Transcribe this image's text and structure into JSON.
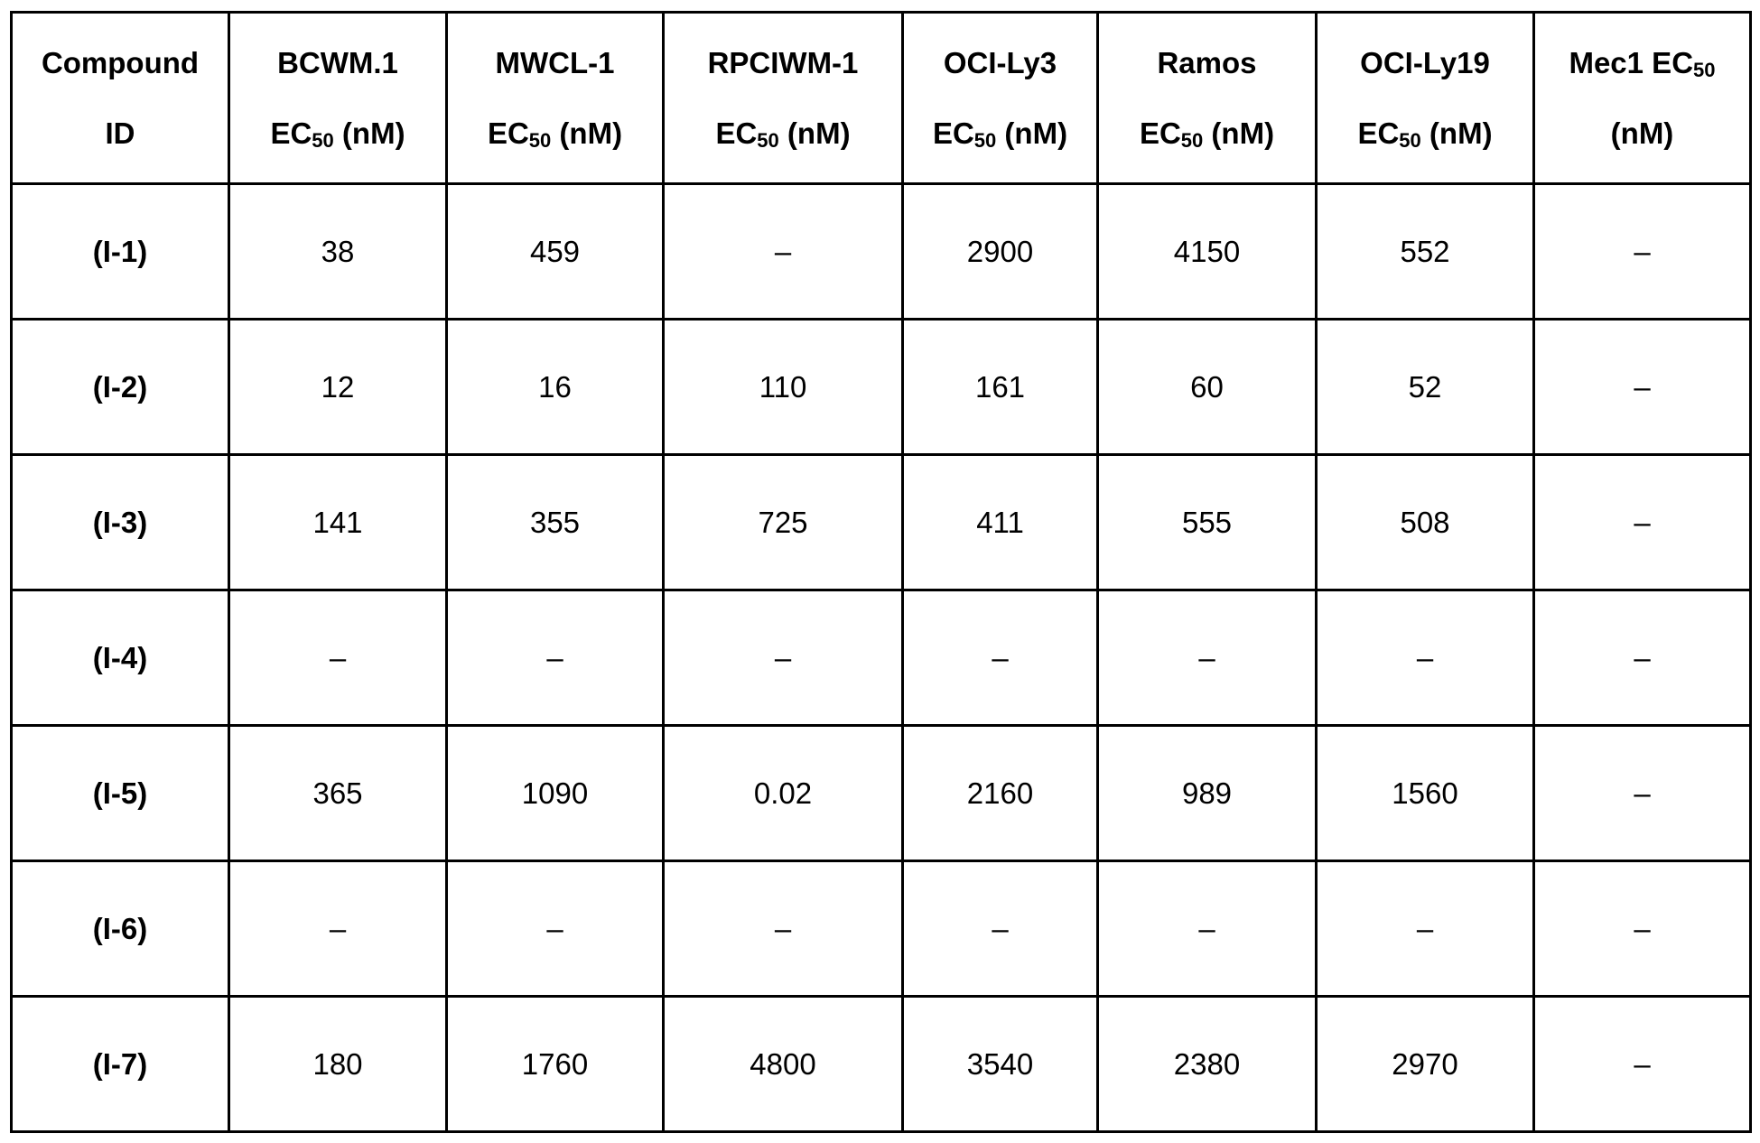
{
  "table": {
    "headers": [
      {
        "line1": "Compound",
        "line2": "ID",
        "sub": "",
        "line2_after": ""
      },
      {
        "line1": "BCWM.1",
        "line2": "EC",
        "sub": "50",
        "line2_after": " (nM)"
      },
      {
        "line1": "MWCL-1",
        "line2": "EC",
        "sub": "50",
        "line2_after": " (nM)"
      },
      {
        "line1": "RPCIWM-1",
        "line2": "EC",
        "sub": "50",
        "line2_after": " (nM)"
      },
      {
        "line1": "OCI-Ly3",
        "line2": "EC",
        "sub": "50",
        "line2_after": " (nM)"
      },
      {
        "line1": "Ramos",
        "line2": "EC",
        "sub": "50",
        "line2_after": " (nM)"
      },
      {
        "line1": "OCI-Ly19",
        "line2": "EC",
        "sub": "50",
        "line2_after": " (nM)"
      },
      {
        "line1": "Mec1 EC",
        "line1_sub": "50",
        "line2": "(nM)",
        "sub": "",
        "line2_after": ""
      }
    ],
    "rows": [
      [
        "(I-1)",
        "38",
        "459",
        "–",
        "2900",
        "4150",
        "552",
        "–"
      ],
      [
        "(I-2)",
        "12",
        "16",
        "110",
        "161",
        "60",
        "52",
        "–"
      ],
      [
        "(I-3)",
        "141",
        "355",
        "725",
        "411",
        "555",
        "508",
        "–"
      ],
      [
        "(I-4)",
        "–",
        "–",
        "–",
        "–",
        "–",
        "–",
        "–"
      ],
      [
        "(I-5)",
        "365",
        "1090",
        "0.02",
        "2160",
        "989",
        "1560",
        "–"
      ],
      [
        "(I-6)",
        "–",
        "–",
        "–",
        "–",
        "–",
        "–",
        "–"
      ],
      [
        "(I-7)",
        "180",
        "1760",
        "4800",
        "3540",
        "2380",
        "2970",
        "–"
      ]
    ]
  }
}
